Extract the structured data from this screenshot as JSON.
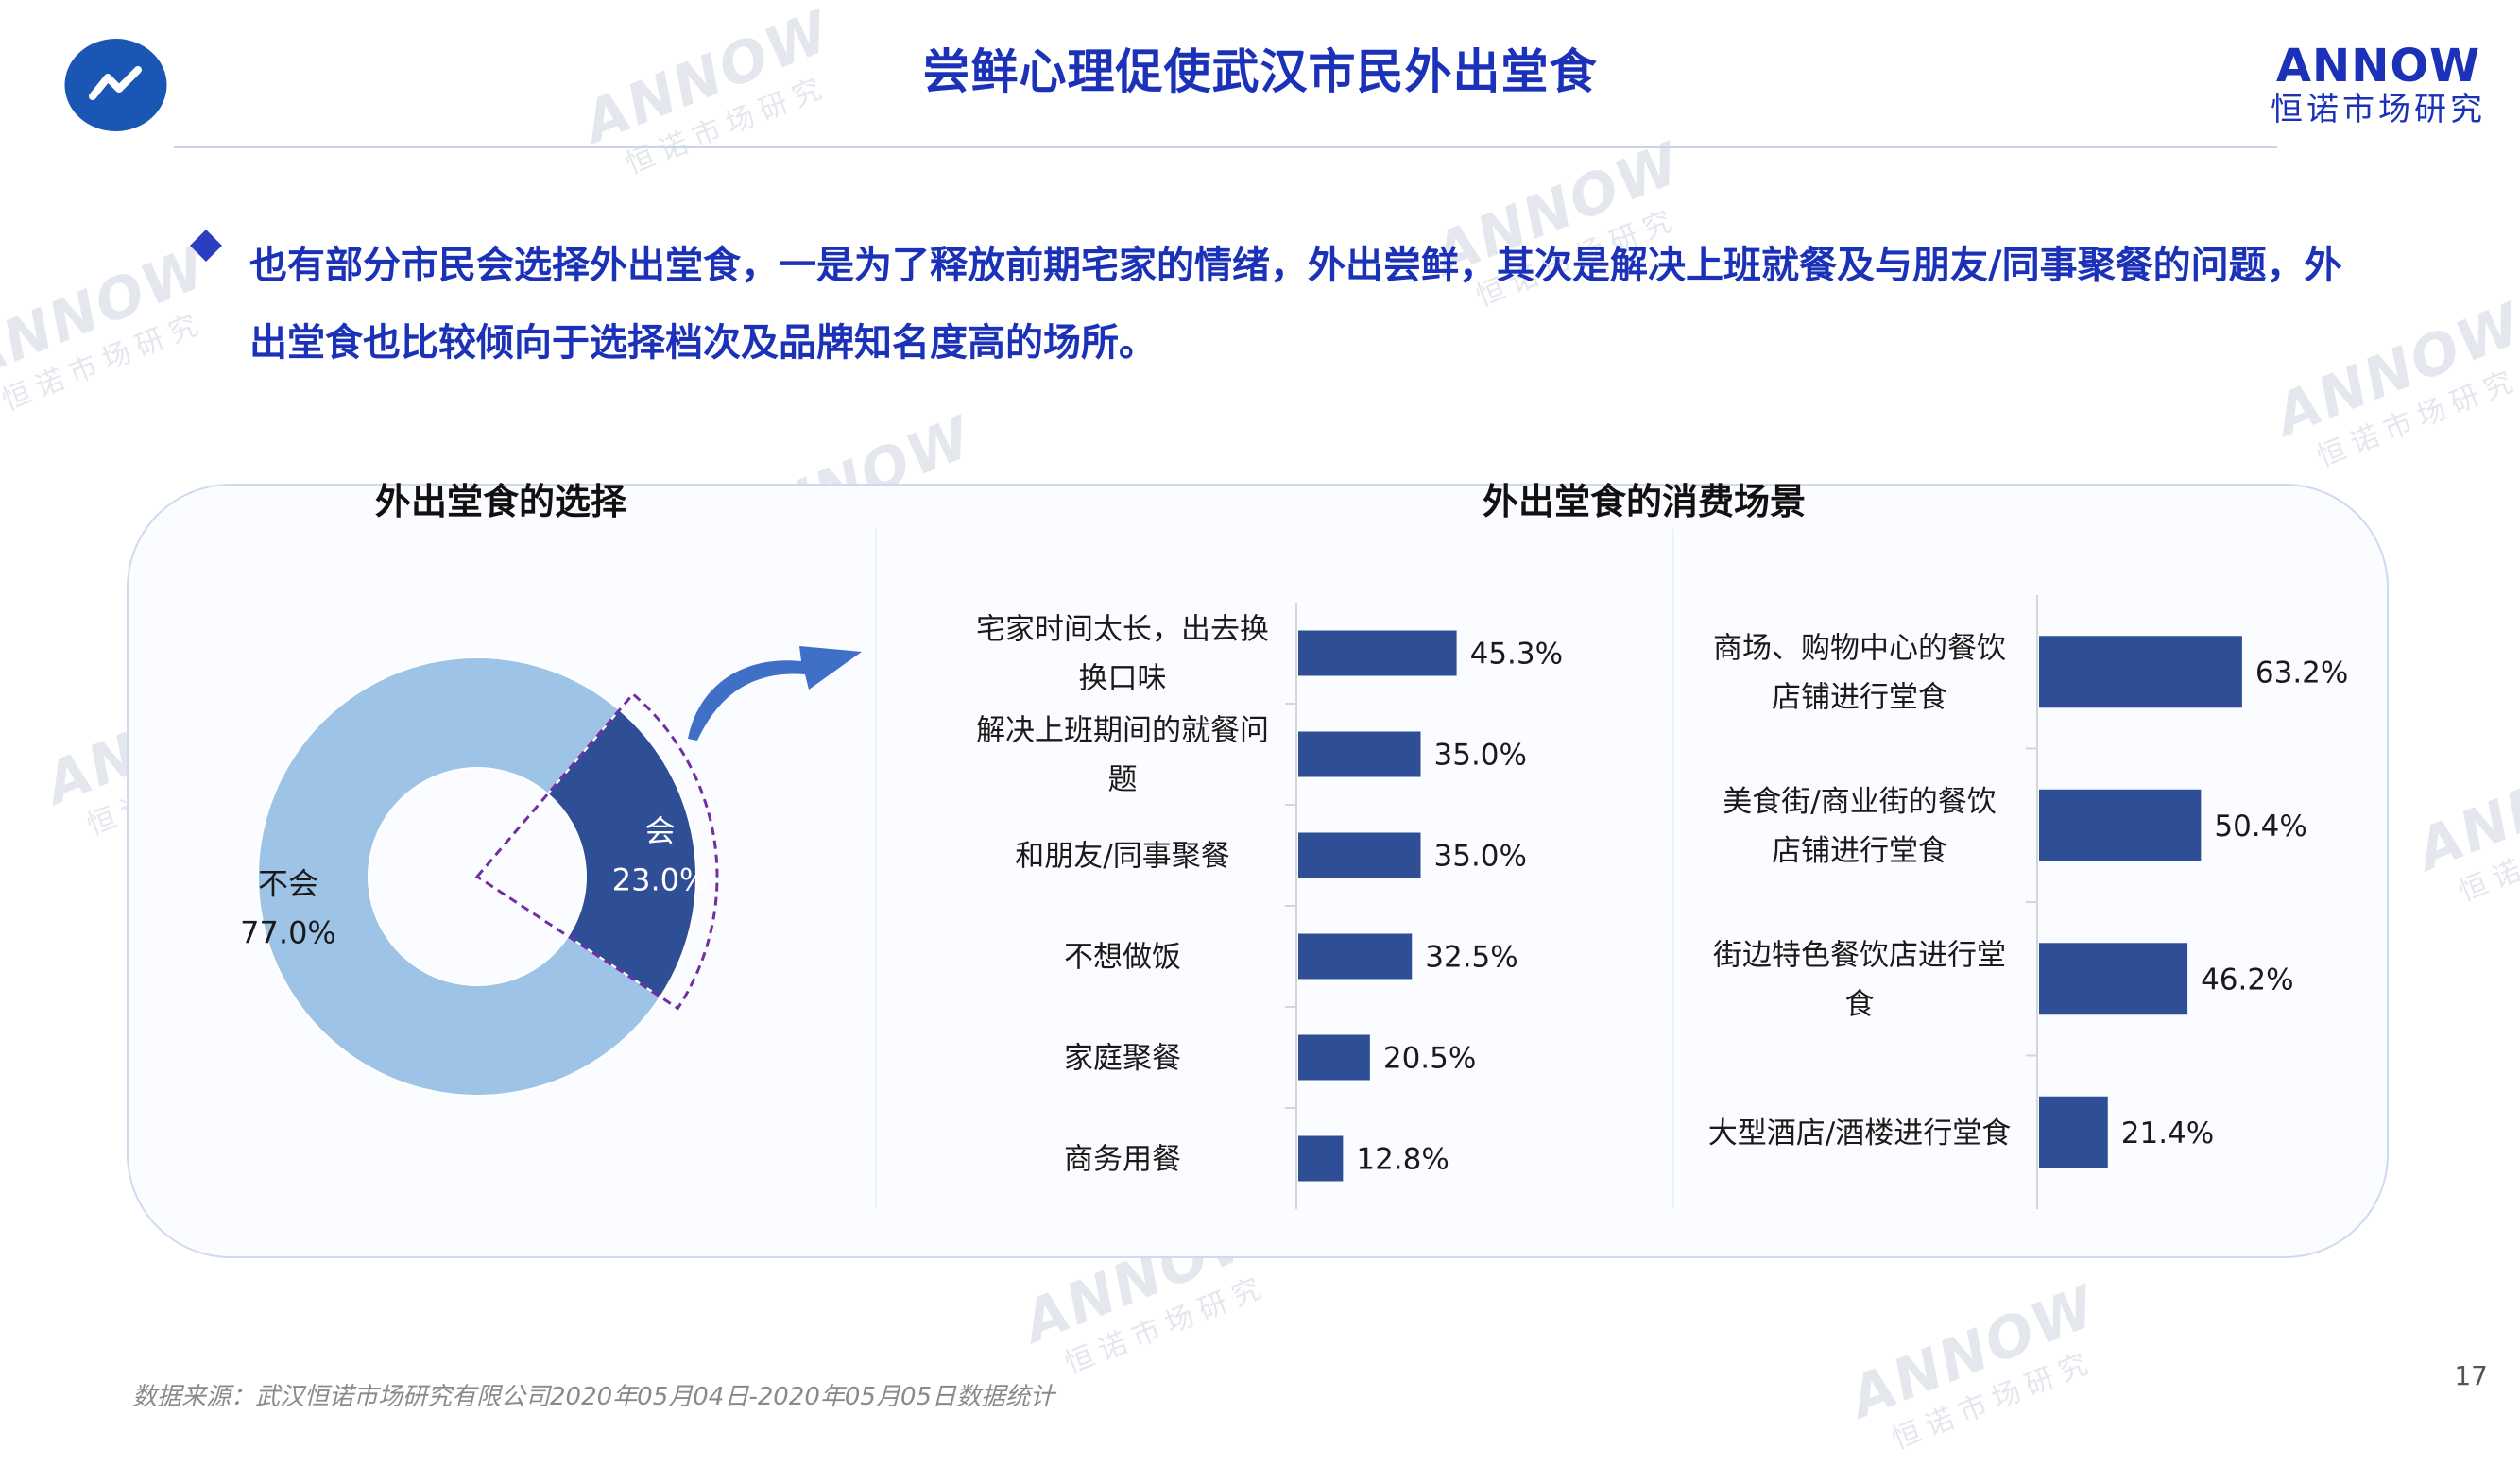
{
  "header": {
    "title": "尝鲜心理促使武汉市民外出堂食",
    "brand_en": "ANNOW",
    "brand_cn": "恒诺市场研究"
  },
  "lead_text": "也有部分市民会选择外出堂食，一是为了释放前期宅家的情绪，外出尝鲜，其次是解决上班就餐及与朋友/同事聚餐的问题，外出堂食也比较倾向于选择档次及品牌知名度高的场所。",
  "watermark": {
    "line1": "ANNOW",
    "line2": "恒诺市场研究"
  },
  "colors": {
    "title": "#1b32b8",
    "bar": "#2e4e96",
    "donut_main": "#9dc3e6",
    "donut_highlight": "#2e4e96",
    "callout": "#7030a0",
    "arrow": "#3f6fc6"
  },
  "chart_data": [
    {
      "type": "pie",
      "variant": "donut",
      "title": "外出堂食的选择",
      "slices": [
        {
          "label": "会",
          "value": 23.0,
          "display": "23.0%"
        },
        {
          "label": "不会",
          "value": 77.0,
          "display": "77.0%"
        }
      ]
    },
    {
      "type": "bar",
      "orientation": "horizontal",
      "title": "外出堂食的消费场景",
      "unit": "%",
      "categories": [
        "宅家时间太长，出去换换口味",
        "解决上班期间的就餐问题",
        "和朋友/同事聚餐",
        "不想做饭",
        "家庭聚餐",
        "商务用餐"
      ],
      "values": [
        45.3,
        35.0,
        35.0,
        32.5,
        20.5,
        12.8
      ],
      "labels": [
        "45.3%",
        "35.0%",
        "35.0%",
        "32.5%",
        "20.5%",
        "12.8%"
      ]
    },
    {
      "type": "bar",
      "orientation": "horizontal",
      "title": "",
      "unit": "%",
      "categories": [
        "商场、购物中心的餐饮店铺进行堂食",
        "美食街/商业街的餐饮店铺进行堂食",
        "街边特色餐饮店进行堂食",
        "大型酒店/酒楼进行堂食"
      ],
      "values": [
        63.2,
        50.4,
        46.2,
        21.4
      ],
      "labels": [
        "63.2%",
        "50.4%",
        "46.2%",
        "21.4%"
      ]
    }
  ],
  "footer": {
    "source": "数据来源：武汉恒诺市场研究有限公司2020年05月04日-2020年05月05日数据统计",
    "page_number": "17"
  }
}
